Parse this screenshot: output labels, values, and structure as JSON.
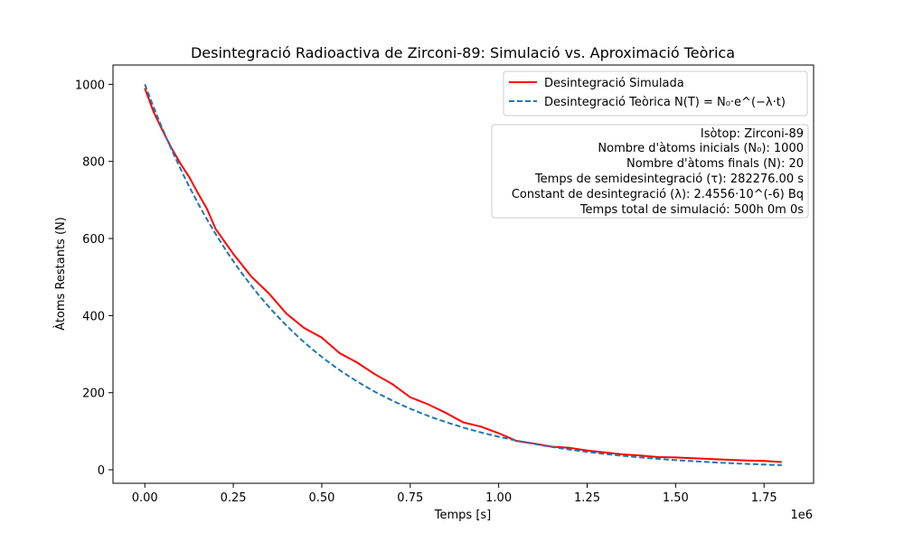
{
  "chart_data": {
    "type": "line",
    "title": "Desintegració Radioactiva de Zirconi-89: Simulació vs. Aproximació Teòrica",
    "xlabel": "Temps [s]",
    "ylabel": "Àtoms Restants (N)",
    "x_offset_label": "1e6",
    "xlim": [
      -90000,
      1890000
    ],
    "ylim": [
      -35,
      1050
    ],
    "x_ticks": [
      0,
      250000,
      500000,
      750000,
      1000000,
      1250000,
      1500000,
      1750000
    ],
    "x_tick_labels": [
      "0.00",
      "0.25",
      "0.50",
      "0.75",
      "1.00",
      "1.25",
      "1.50",
      "1.75"
    ],
    "y_ticks": [
      0,
      200,
      400,
      600,
      800,
      1000
    ],
    "y_tick_labels": [
      "0",
      "200",
      "400",
      "600",
      "800",
      "1000"
    ],
    "grid": false,
    "legend_position": "top-right",
    "series": [
      {
        "name": "Desintegració Simulada",
        "color": "#ff0000",
        "style": "solid",
        "x": [
          0,
          25000,
          50000,
          75000,
          100000,
          125000,
          150000,
          175000,
          200000,
          250000,
          300000,
          350000,
          400000,
          450000,
          500000,
          550000,
          600000,
          650000,
          700000,
          750000,
          800000,
          850000,
          900000,
          950000,
          1000000,
          1050000,
          1100000,
          1150000,
          1200000,
          1250000,
          1300000,
          1350000,
          1400000,
          1450000,
          1500000,
          1550000,
          1600000,
          1650000,
          1700000,
          1750000,
          1800000
        ],
        "y": [
          990,
          928,
          880,
          835,
          795,
          760,
          718,
          678,
          625,
          560,
          502,
          458,
          405,
          368,
          343,
          303,
          278,
          248,
          222,
          188,
          170,
          148,
          123,
          112,
          95,
          75,
          68,
          60,
          57,
          50,
          45,
          40,
          37,
          33,
          32,
          30,
          28,
          26,
          24,
          23,
          20
        ]
      },
      {
        "name": "Desintegració Teòrica N(T) = N₀·e^(−λ·t)",
        "color": "#1f77b4",
        "style": "dashed",
        "function": "exponential",
        "n0": 1000,
        "lambda": 2.4556e-06,
        "x_start": 0,
        "x_end": 1800000
      }
    ],
    "info_box": [
      "Isòtop: Zirconi-89",
      "Nombre d'àtoms inicials (N₀): 1000",
      "Nombre d'àtoms finals (N): 20",
      "Temps de semidesintegració (τ): 282276.00 s",
      "Constant de desintegració (λ): 2.4556·10^(-6) Bq",
      "Temps total de simulació: 500h 0m 0s"
    ]
  }
}
